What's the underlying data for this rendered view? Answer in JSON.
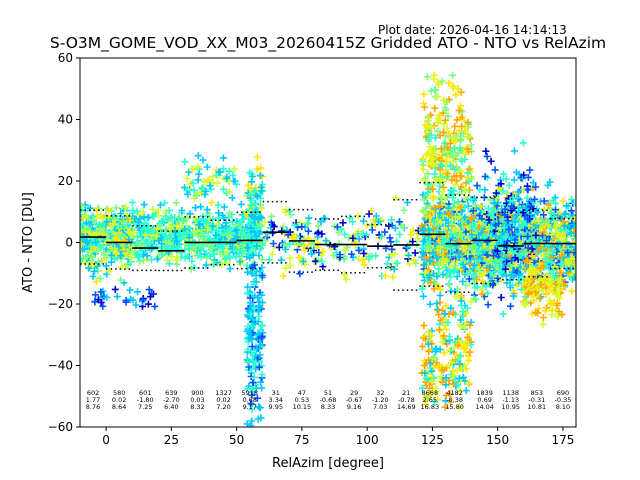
{
  "header": {
    "plot_date": "Plot date: 2026-04-16 14:14:13",
    "title": "S-O3M_GOME_VOD_XX_M03_20260415Z Gridded ATO - NTO vs RelAzim"
  },
  "chart_data": {
    "type": "scatter",
    "xlabel": "RelAzim [degree]",
    "ylabel": "ATO - NTO [DU]",
    "xlim": [
      -10,
      180
    ],
    "ylim": [
      -60,
      60
    ],
    "xticks": [
      0,
      25,
      50,
      75,
      100,
      125,
      150,
      175
    ],
    "yticks": [
      -60,
      -40,
      -20,
      0,
      20,
      40,
      60
    ],
    "grid": false,
    "legend": "none",
    "colors": {
      "scatter_palette": [
        "#0000cd",
        "#0055ff",
        "#00c8ff",
        "#2cffd0",
        "#7dff7d",
        "#d4ff28",
        "#ffe600",
        "#ffa500"
      ],
      "mean_line": "#000000",
      "std_line": "#000000"
    },
    "bins": [
      {
        "x": -5,
        "count": "602",
        "mean": "1.77",
        "std": "8.76"
      },
      {
        "x": 5,
        "count": "580",
        "mean": "0.02",
        "std": "8.64"
      },
      {
        "x": 15,
        "count": "601",
        "mean": "-1.80",
        "std": "7.25"
      },
      {
        "x": 25,
        "count": "639",
        "mean": "-2.70",
        "std": "6.40"
      },
      {
        "x": 35,
        "count": "900",
        "mean": "0.03",
        "std": "8.32"
      },
      {
        "x": 45,
        "count": "1327",
        "mean": "0.02",
        "std": "7.20"
      },
      {
        "x": 55,
        "count": "5918",
        "mean": "0.68",
        "std": "9.17"
      },
      {
        "x": 65,
        "count": "31",
        "mean": "3.34",
        "std": "9.95"
      },
      {
        "x": 75,
        "count": "47",
        "mean": "0.53",
        "std": "10.15"
      },
      {
        "x": 85,
        "count": "51",
        "mean": "-0.68",
        "std": "8.33"
      },
      {
        "x": 95,
        "count": "29",
        "mean": "-0.67",
        "std": "9.16"
      },
      {
        "x": 105,
        "count": "32",
        "mean": "-1.20",
        "std": "7.03"
      },
      {
        "x": 115,
        "count": "21",
        "mean": "-0.78",
        "std": "14.69"
      },
      {
        "x": 124,
        "count": "8668",
        "mean": "2.65",
        "std": "16.83"
      },
      {
        "x": 133.5,
        "count": "4182",
        "mean": "-0.38",
        "std": "15.80"
      },
      {
        "x": 145,
        "count": "1839",
        "mean": "0.69",
        "std": "14.04"
      },
      {
        "x": 155,
        "count": "1138",
        "mean": "-1.13",
        "std": "10.95"
      },
      {
        "x": 165,
        "count": "853",
        "mean": "-0.31",
        "std": "10.81"
      },
      {
        "x": 175,
        "count": "690",
        "mean": "-0.35",
        "std": "8.10"
      }
    ],
    "mean_segments": [
      {
        "x0": -10,
        "x1": 0,
        "y": 1.77
      },
      {
        "x0": 0,
        "x1": 10,
        "y": 0.02
      },
      {
        "x0": 10,
        "x1": 20,
        "y": -1.8
      },
      {
        "x0": 20,
        "x1": 30,
        "y": -2.7
      },
      {
        "x0": 30,
        "x1": 40,
        "y": 0.03
      },
      {
        "x0": 40,
        "x1": 50,
        "y": 0.02
      },
      {
        "x0": 50,
        "x1": 60,
        "y": 0.68
      },
      {
        "x0": 60,
        "x1": 70,
        "y": 3.34
      },
      {
        "x0": 70,
        "x1": 80,
        "y": 0.53
      },
      {
        "x0": 80,
        "x1": 90,
        "y": -0.68
      },
      {
        "x0": 90,
        "x1": 100,
        "y": -0.67
      },
      {
        "x0": 100,
        "x1": 110,
        "y": -1.2
      },
      {
        "x0": 110,
        "x1": 120,
        "y": -0.78
      },
      {
        "x0": 120,
        "x1": 130,
        "y": 2.65
      },
      {
        "x0": 130,
        "x1": 140,
        "y": -0.38
      },
      {
        "x0": 140,
        "x1": 150,
        "y": 0.69
      },
      {
        "x0": 150,
        "x1": 160,
        "y": -1.13
      },
      {
        "x0": 160,
        "x1": 170,
        "y": -0.31
      },
      {
        "x0": 170,
        "x1": 180,
        "y": -0.35
      }
    ],
    "point_clusters": [
      {
        "x": [
          -10,
          60
        ],
        "y_center": 2,
        "y_spread": 9,
        "count": 900,
        "palette": [
          2,
          3,
          3,
          3,
          4,
          2,
          5
        ]
      },
      {
        "x": [
          -10,
          10
        ],
        "y_center": 0,
        "y_spread": 14,
        "count": 120,
        "palette": [
          5,
          6,
          4,
          2
        ]
      },
      {
        "x": [
          -5,
          20
        ],
        "y_center": -18,
        "y_spread": 4,
        "count": 30,
        "palette": [
          0,
          1,
          2
        ]
      },
      {
        "x": [
          30,
          50
        ],
        "y_center": 20,
        "y_spread": 8,
        "count": 60,
        "palette": [
          2,
          5,
          6,
          3
        ]
      },
      {
        "x": [
          54,
          60
        ],
        "y_center": -30,
        "y_spread": 28,
        "count": 160,
        "palette": [
          2,
          1,
          2,
          3
        ]
      },
      {
        "x": [
          54,
          60
        ],
        "y_center": 15,
        "y_spread": 12,
        "count": 60,
        "palette": [
          2,
          3,
          6
        ]
      },
      {
        "x": [
          60,
          120
        ],
        "y_center": 0,
        "y_spread": 11,
        "count": 220,
        "palette": [
          2,
          3,
          4,
          5,
          6,
          0,
          1
        ]
      },
      {
        "x": [
          121,
          180
        ],
        "y_center": 0,
        "y_spread": 16,
        "count": 1500,
        "palette": [
          2,
          3,
          3,
          4,
          5,
          6,
          7,
          2,
          1
        ]
      },
      {
        "x": [
          121,
          140
        ],
        "y_center": 30,
        "y_spread": 22,
        "count": 260,
        "palette": [
          6,
          7,
          4,
          5,
          3
        ]
      },
      {
        "x": [
          121,
          140
        ],
        "y_center": -35,
        "y_spread": 20,
        "count": 200,
        "palette": [
          6,
          7,
          3,
          2,
          5
        ]
      },
      {
        "x": [
          145,
          165
        ],
        "y_center": 5,
        "y_spread": 22,
        "count": 180,
        "palette": [
          2,
          1,
          0,
          3
        ]
      },
      {
        "x": [
          160,
          175
        ],
        "y_center": -15,
        "y_spread": 10,
        "count": 120,
        "palette": [
          6,
          7,
          5
        ]
      }
    ]
  }
}
